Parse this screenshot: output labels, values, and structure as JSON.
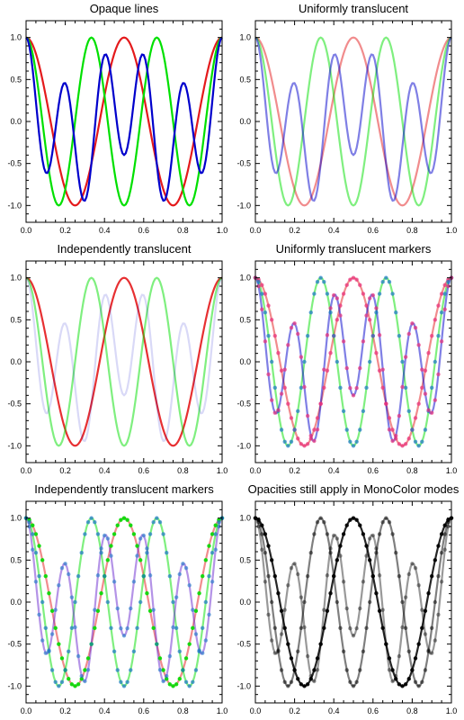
{
  "chart_data": [
    {
      "type": "line",
      "title": "Opaque lines",
      "xlim": [
        0,
        1
      ],
      "ylim": [
        -1.2,
        1.2
      ],
      "xticks": [
        "0.0",
        "0.2",
        "0.4",
        "0.6",
        "0.8",
        "1.0"
      ],
      "yticks": [
        "-1.0",
        "-0.5",
        "0.0",
        "0.5",
        "1.0"
      ],
      "markers": false,
      "series": [
        {
          "function": "cos(2*pi*2*x)",
          "color": "#e41a1c",
          "opacity": 1.0
        },
        {
          "function": "cos(2*pi*3*x)",
          "color": "#00e000",
          "opacity": 1.0
        },
        {
          "function": "0.7*cos(2*pi*5*x)+0.3*cos(2*pi*2*x)",
          "color": "#0000cc",
          "opacity": 1.0
        }
      ]
    },
    {
      "type": "line",
      "title": "Uniformly translucent",
      "xlim": [
        0,
        1
      ],
      "ylim": [
        -1.2,
        1.2
      ],
      "xticks": [
        "0.0",
        "0.2",
        "0.4",
        "0.6",
        "0.8",
        "1.0"
      ],
      "yticks": [
        "-1.0",
        "-0.5",
        "0.0",
        "0.5",
        "1.0"
      ],
      "markers": false,
      "series": [
        {
          "function": "cos(2*pi*2*x)",
          "color": "#e41a1c",
          "opacity": 0.5
        },
        {
          "function": "cos(2*pi*3*x)",
          "color": "#00e000",
          "opacity": 0.5
        },
        {
          "function": "0.7*cos(2*pi*5*x)+0.3*cos(2*pi*2*x)",
          "color": "#0000cc",
          "opacity": 0.5
        }
      ]
    },
    {
      "type": "line",
      "title": "Independently translucent",
      "xlim": [
        0,
        1
      ],
      "ylim": [
        -1.2,
        1.2
      ],
      "xticks": [
        "0.0",
        "0.2",
        "0.4",
        "0.6",
        "0.8",
        "1.0"
      ],
      "yticks": [
        "-1.0",
        "-0.5",
        "0.0",
        "0.5",
        "1.0"
      ],
      "markers": false,
      "series": [
        {
          "function": "cos(2*pi*2*x)",
          "color": "#e41a1c",
          "opacity": 0.9
        },
        {
          "function": "cos(2*pi*3*x)",
          "color": "#00e000",
          "opacity": 0.5
        },
        {
          "function": "0.7*cos(2*pi*5*x)+0.3*cos(2*pi*2*x)",
          "color": "#0000cc",
          "opacity": 0.15
        }
      ]
    },
    {
      "type": "line",
      "title": "Uniformly translucent markers",
      "xlim": [
        0,
        1
      ],
      "ylim": [
        -1.2,
        1.2
      ],
      "xticks": [
        "0.0",
        "0.2",
        "0.4",
        "0.6",
        "0.8",
        "1.0"
      ],
      "yticks": [
        "-1.0",
        "-0.5",
        "0.0",
        "0.5",
        "1.0"
      ],
      "markers": true,
      "series": [
        {
          "function": "cos(2*pi*2*x)",
          "color": "#e41a1c",
          "opacity": 0.5,
          "marker_color": "#e8307a",
          "marker_opacity": 0.7
        },
        {
          "function": "cos(2*pi*3*x)",
          "color": "#00e000",
          "opacity": 0.5,
          "marker_color": "#1e78c8",
          "marker_opacity": 0.7
        },
        {
          "function": "0.7*cos(2*pi*5*x)+0.3*cos(2*pi*2*x)",
          "color": "#0000cc",
          "opacity": 0.5,
          "marker_color": "#e8307a",
          "marker_opacity": 0.7
        }
      ]
    },
    {
      "type": "line",
      "title": "Independently translucent markers",
      "xlim": [
        0,
        1
      ],
      "ylim": [
        -1.2,
        1.2
      ],
      "xticks": [
        "0.0",
        "0.2",
        "0.4",
        "0.6",
        "0.8",
        "1.0"
      ],
      "yticks": [
        "-1.0",
        "-0.5",
        "0.0",
        "0.5",
        "1.0"
      ],
      "markers": true,
      "series": [
        {
          "function": "cos(2*pi*2*x)",
          "color": "#e41a1c",
          "opacity": 0.5,
          "marker_color": "#00dd00",
          "marker_opacity": 0.9
        },
        {
          "function": "cos(2*pi*3*x)",
          "color": "#00e000",
          "opacity": 0.5,
          "marker_color": "#1e78c8",
          "marker_opacity": 0.7
        },
        {
          "function": "0.7*cos(2*pi*5*x)+0.3*cos(2*pi*2*x)",
          "color": "#6a28d0",
          "opacity": 0.5,
          "marker_color": "#1e78c8",
          "marker_opacity": 0.6
        }
      ]
    },
    {
      "type": "line",
      "title": "Opacities still apply in MonoColor modes",
      "xlim": [
        0,
        1
      ],
      "ylim": [
        -1.2,
        1.2
      ],
      "xticks": [
        "0.0",
        "0.2",
        "0.4",
        "0.6",
        "0.8",
        "1.0"
      ],
      "yticks": [
        "-1.0",
        "-0.5",
        "0.0",
        "0.5",
        "1.0"
      ],
      "markers": true,
      "series": [
        {
          "function": "cos(2*pi*2*x)",
          "color": "#000000",
          "opacity": 0.85,
          "marker_color": "#000000",
          "marker_opacity": 0.9
        },
        {
          "function": "cos(2*pi*3*x)",
          "color": "#000000",
          "opacity": 0.5,
          "marker_color": "#000000",
          "marker_opacity": 0.5
        },
        {
          "function": "0.7*cos(2*pi*5*x)+0.3*cos(2*pi*2*x)",
          "color": "#000000",
          "opacity": 0.4,
          "marker_color": "#000000",
          "marker_opacity": 0.4
        }
      ]
    }
  ]
}
